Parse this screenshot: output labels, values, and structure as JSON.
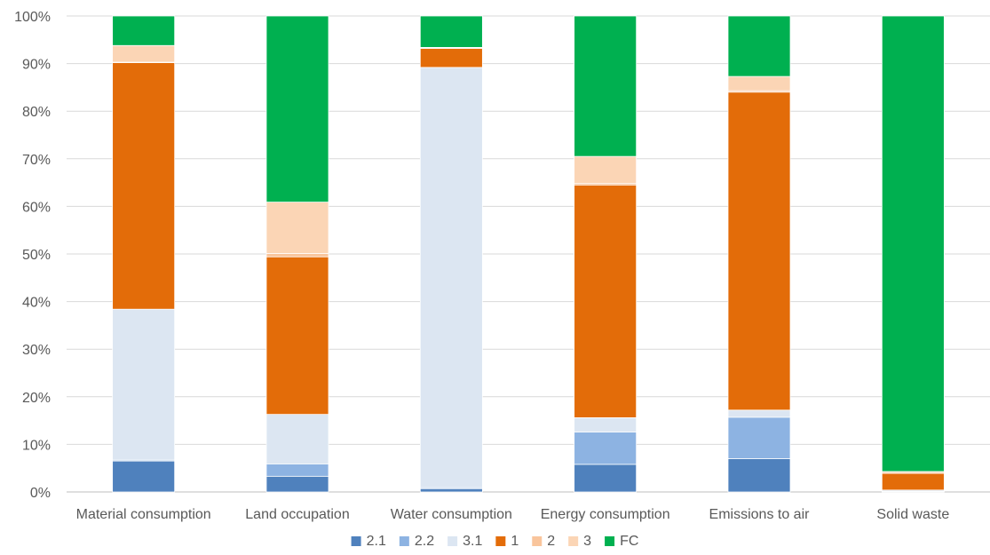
{
  "chart_data": {
    "type": "bar",
    "stacked": true,
    "percent": true,
    "categories": [
      "Material consumption",
      "Land occupation",
      "Water consumption",
      "Energy consumption",
      "Emissions to air",
      "Solid waste"
    ],
    "series": [
      {
        "name": "2.1",
        "color": "#4F81BD",
        "values": [
          6.5,
          3.3,
          0.7,
          5.8,
          7.0,
          0.1
        ]
      },
      {
        "name": "2.2",
        "color": "#8DB3E2",
        "values": [
          0.2,
          2.6,
          0.2,
          6.8,
          8.7,
          0.0
        ]
      },
      {
        "name": "3.1",
        "color": "#DCE6F2",
        "values": [
          31.7,
          10.4,
          88.3,
          3.0,
          1.5,
          0.3
        ]
      },
      {
        "name": "1",
        "color": "#E36C09",
        "values": [
          51.8,
          33.1,
          4.0,
          48.9,
          66.8,
          3.5
        ]
      },
      {
        "name": "2",
        "color": "#F9C59C",
        "values": [
          0.1,
          0.7,
          0.1,
          0.3,
          0.3,
          0.0
        ]
      },
      {
        "name": "3",
        "color": "#FBD5B5",
        "values": [
          3.5,
          10.8,
          0.1,
          5.7,
          3.0,
          0.4
        ]
      },
      {
        "name": "FC",
        "color": "#00B050",
        "values": [
          6.2,
          39.1,
          6.6,
          29.5,
          12.7,
          95.7
        ]
      }
    ],
    "y_ticks": [
      "0%",
      "10%",
      "20%",
      "30%",
      "40%",
      "50%",
      "60%",
      "70%",
      "80%",
      "90%",
      "100%"
    ],
    "ylim": [
      0,
      100
    ],
    "grid": true,
    "legend_position": "bottom",
    "title": "",
    "xlabel": "",
    "ylabel": ""
  }
}
